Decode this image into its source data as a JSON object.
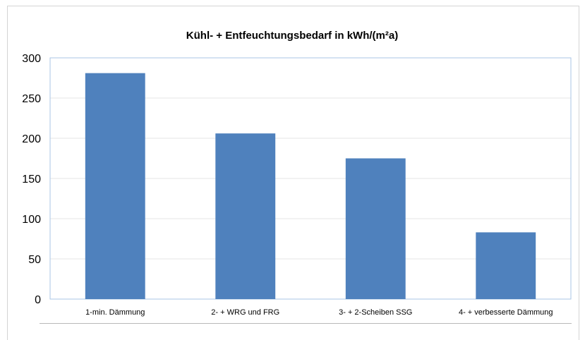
{
  "chart_data": {
    "type": "bar",
    "title": "Kühl- + Entfeuchtungsbedarf in kWh/(m²a)",
    "xlabel": "",
    "ylabel": "",
    "categories": [
      "1-min. Dämmung",
      "2- + WRG und FRG",
      "3- + 2-Scheiben SSG",
      "4- + verbesserte Dämmung"
    ],
    "values": [
      281,
      206,
      175,
      83
    ],
    "ylim": [
      0,
      300
    ],
    "yticks": [
      0,
      50,
      100,
      150,
      200,
      250,
      300
    ],
    "grid": true,
    "legend": "none",
    "bar_color": "#4f81bd",
    "plot_border_color": "#a9c4e6"
  }
}
